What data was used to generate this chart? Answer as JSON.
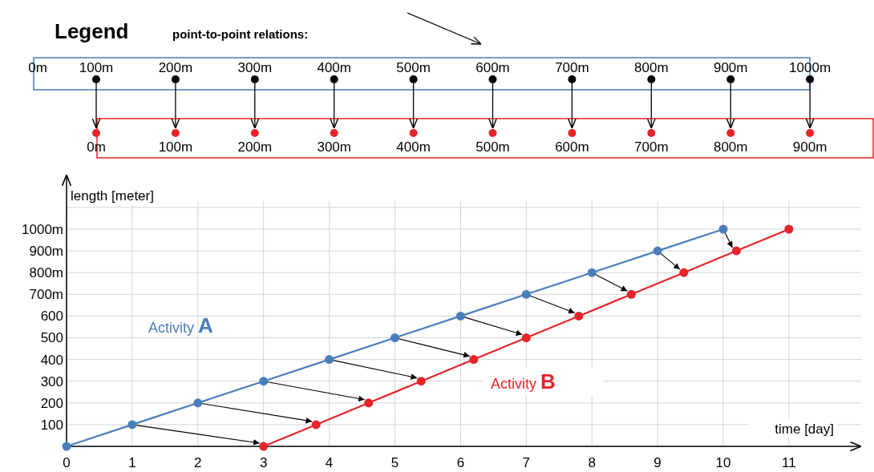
{
  "chart_data": {
    "type": "line",
    "xlabel": "time [day]",
    "ylabel": "length [meter]",
    "xlim": [
      0,
      12.1
    ],
    "xticks": [
      0,
      1,
      2,
      3,
      4,
      5,
      6,
      7,
      8,
      9,
      10,
      11
    ],
    "ylim": [
      0,
      1250
    ],
    "yticks": [
      {
        "value": 100,
        "label": "100"
      },
      {
        "value": 200,
        "label": "200"
      },
      {
        "value": 300,
        "label": "300"
      },
      {
        "value": 400,
        "label": "400"
      },
      {
        "value": 500,
        "label": "500"
      },
      {
        "value": 600,
        "label": "600"
      },
      {
        "value": 700,
        "label": "700m"
      },
      {
        "value": 800,
        "label": "800m"
      },
      {
        "value": 900,
        "label": "900m"
      },
      {
        "value": 1000,
        "label": "1000m"
      },
      {
        "value": 1100,
        "label": null
      }
    ],
    "grid": true,
    "marker": "circle",
    "line_style": "solid",
    "series": [
      {
        "name": "Activity A",
        "color": "#4a7ebb",
        "x": [
          0,
          1,
          2,
          3,
          4,
          5,
          6,
          7,
          8,
          9,
          10
        ],
        "values": [
          0,
          100,
          200,
          300,
          400,
          500,
          600,
          700,
          800,
          900,
          1000
        ]
      },
      {
        "name": "Activity B",
        "color": "#e8232a",
        "x": [
          3,
          3.8,
          4.6,
          5.4,
          6.2,
          7,
          7.8,
          8.6,
          9.4,
          10.2,
          11
        ],
        "values": [
          0,
          100,
          200,
          300,
          400,
          500,
          600,
          700,
          800,
          900,
          1000
        ]
      }
    ],
    "annotations": [
      "Legend",
      "point-to-point relations:",
      "0m",
      "100m",
      "200m",
      "300m",
      "400m",
      "500m",
      "600m",
      "700m",
      "800m",
      "900m",
      "1000m",
      "0m",
      "100m",
      "200m",
      "300m",
      "400m",
      "500m",
      "600m",
      "700m",
      "800m",
      "900m"
    ]
  }
}
